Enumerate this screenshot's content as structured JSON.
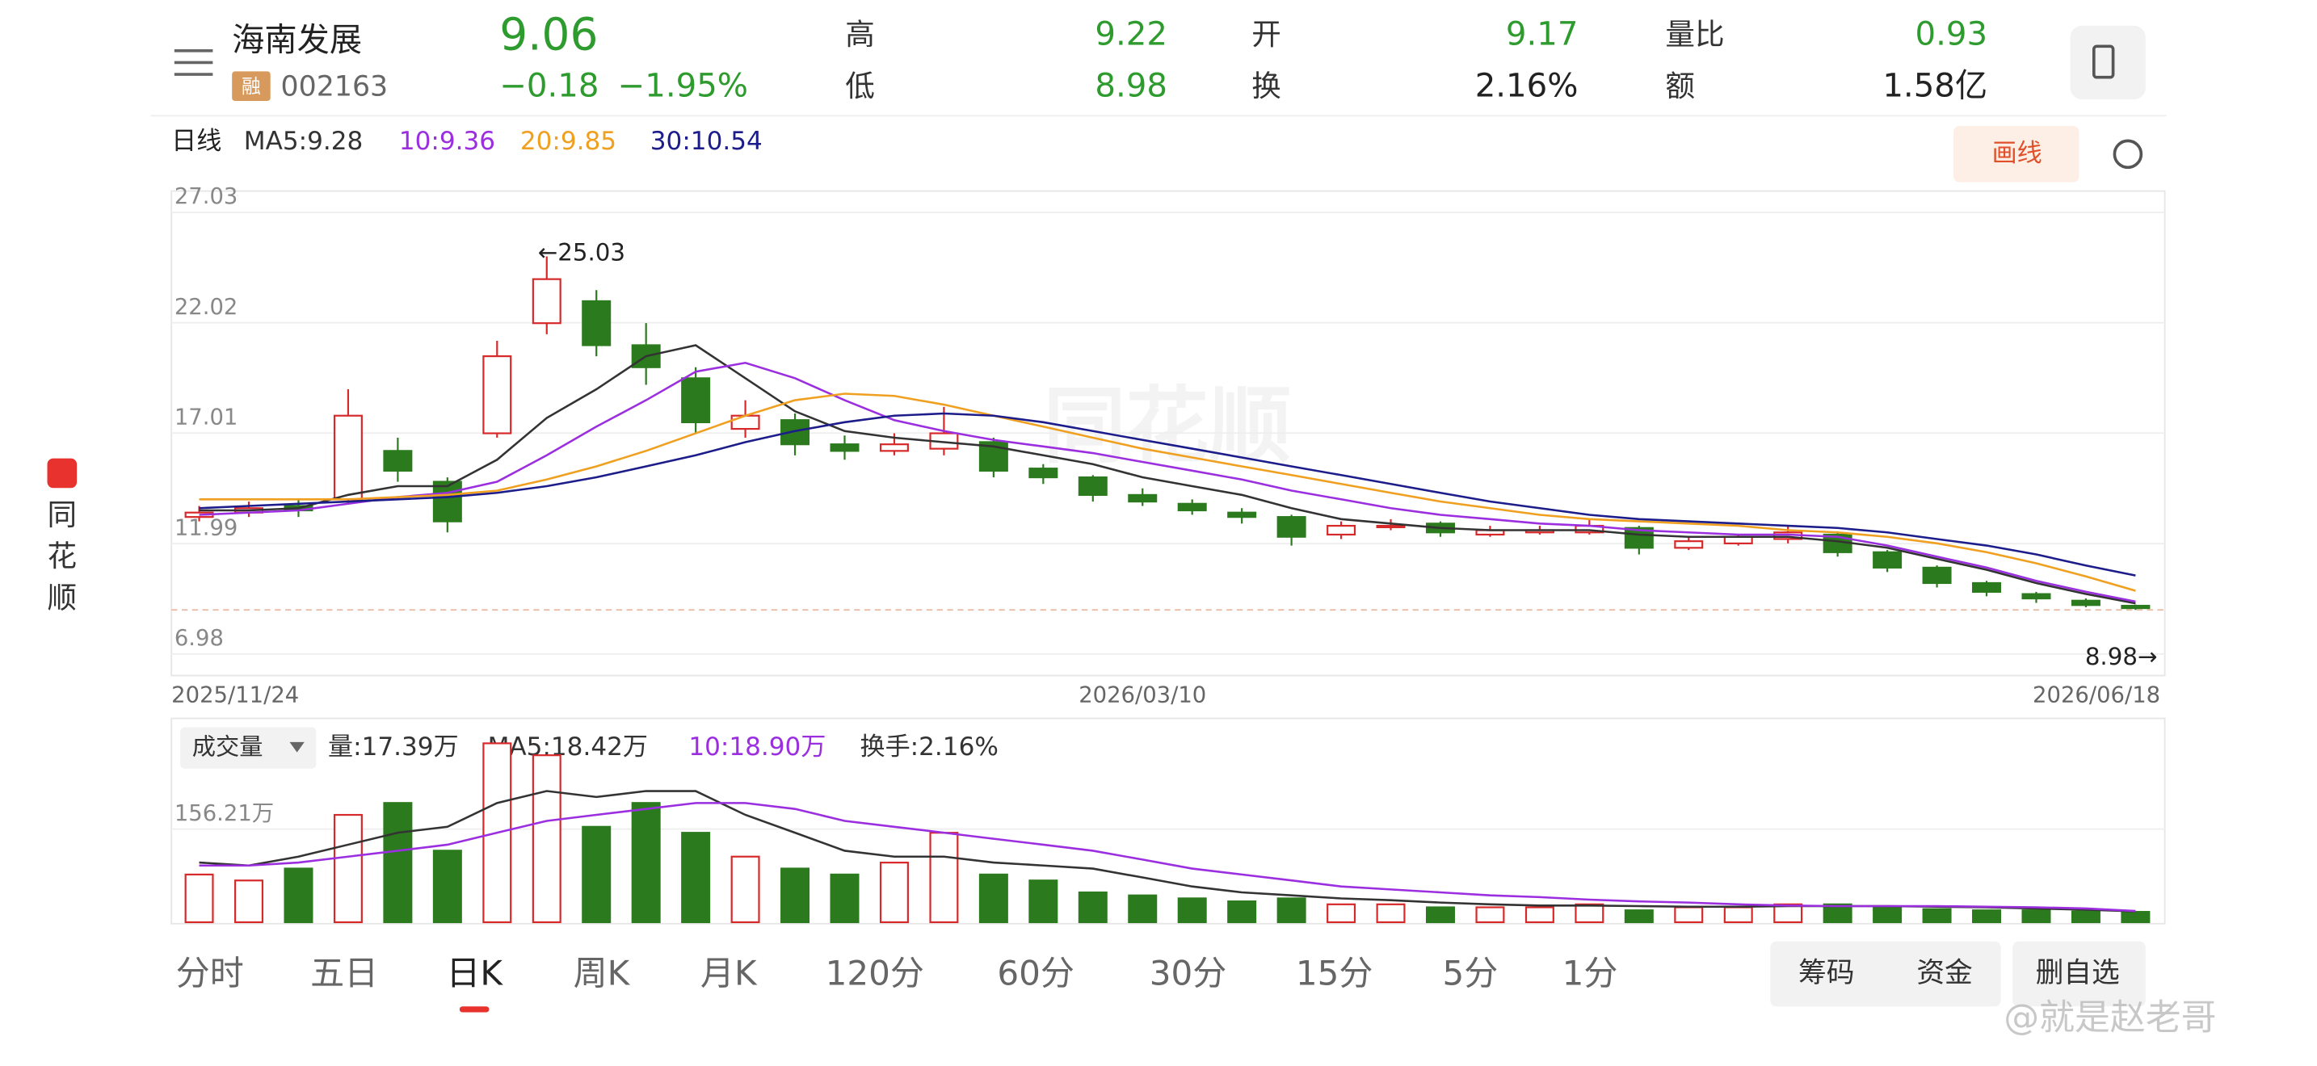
{
  "header": {
    "name": "海南发展",
    "margin_tag": "融",
    "code": "002163",
    "price": "9.06",
    "change": "−0.18",
    "change_pct": "−1.95%",
    "stats": [
      {
        "label": "高",
        "value": "9.22"
      },
      {
        "label": "低",
        "value": "8.98"
      },
      {
        "label": "开",
        "value": "9.17"
      },
      {
        "label": "换",
        "value": "2.16%"
      },
      {
        "label": "量比",
        "value": "0.93"
      },
      {
        "label": "额",
        "value": "1.58亿"
      }
    ]
  },
  "indicator_bar": {
    "period": "日线",
    "legend": [
      "MA5:9.28",
      "10:9.36",
      "20:9.85",
      "30:10.54"
    ],
    "draw_button": "画线"
  },
  "side_logo": "同花顺",
  "watermark": "@就是赵老哥",
  "chart_data": [
    {
      "type": "candlestick",
      "categories": [
        "2025/11/24",
        null,
        null,
        null,
        null,
        null,
        null,
        null,
        null,
        null,
        null,
        null,
        null,
        null,
        null,
        null,
        null,
        null,
        null,
        "2026/03/10",
        null,
        null,
        null,
        null,
        null,
        null,
        null,
        null,
        null,
        null,
        null,
        null,
        null,
        null,
        null,
        null,
        null,
        null,
        null,
        "2026/06/18"
      ],
      "open": [
        13.2,
        13.4,
        13.7,
        14.0,
        16.2,
        14.8,
        17.0,
        22.0,
        23.0,
        21.0,
        19.5,
        17.2,
        17.6,
        16.5,
        16.2,
        16.3,
        16.6,
        15.4,
        15.0,
        14.2,
        13.8,
        13.4,
        13.2,
        12.4,
        12.8,
        12.9,
        12.4,
        12.5,
        12.5,
        12.7,
        11.8,
        12.0,
        12.2,
        12.4,
        11.6,
        10.9,
        10.2,
        9.7,
        9.4,
        9.17
      ],
      "close": [
        13.4,
        13.6,
        13.5,
        17.8,
        15.3,
        13.0,
        20.5,
        24.0,
        21.0,
        20.0,
        17.5,
        17.8,
        16.5,
        16.2,
        16.5,
        17.0,
        15.3,
        15.0,
        14.2,
        13.9,
        13.5,
        13.2,
        12.3,
        12.8,
        12.8,
        12.5,
        12.6,
        12.6,
        12.8,
        11.8,
        12.1,
        12.3,
        12.5,
        11.6,
        10.9,
        10.2,
        9.8,
        9.5,
        9.2,
        9.06
      ],
      "low": [
        13.0,
        13.2,
        13.2,
        13.8,
        14.8,
        12.5,
        16.8,
        21.5,
        20.5,
        19.2,
        17.0,
        16.8,
        16.0,
        15.8,
        16.0,
        16.0,
        15.0,
        14.7,
        13.9,
        13.7,
        13.3,
        12.9,
        11.9,
        12.2,
        12.6,
        12.3,
        12.3,
        12.4,
        12.4,
        11.5,
        11.7,
        11.9,
        12.0,
        11.4,
        10.7,
        10.0,
        9.6,
        9.3,
        9.1,
        8.98
      ],
      "high": [
        13.7,
        13.9,
        14.0,
        19.0,
        16.8,
        15.0,
        21.2,
        25.03,
        23.5,
        22.0,
        20.0,
        18.5,
        17.9,
        16.9,
        17.0,
        18.2,
        16.8,
        15.6,
        15.1,
        14.5,
        14.0,
        13.6,
        13.3,
        13.0,
        13.1,
        13.0,
        12.8,
        12.8,
        13.1,
        12.8,
        12.3,
        12.4,
        12.8,
        12.5,
        11.7,
        11.0,
        10.3,
        9.8,
        9.5,
        9.22
      ],
      "up_color": "#d7282a",
      "down_color": "#2c7a1e",
      "series": [
        {
          "color": "#333333",
          "values": [
            13.5,
            13.5,
            13.6,
            14.2,
            14.6,
            14.6,
            15.8,
            17.7,
            19.0,
            20.5,
            21.0,
            19.5,
            18.0,
            17.1,
            16.8,
            16.6,
            16.4,
            16.0,
            15.6,
            15.0,
            14.6,
            14.2,
            13.6,
            13.1,
            12.9,
            12.7,
            12.6,
            12.6,
            12.6,
            12.4,
            12.3,
            12.3,
            12.3,
            12.1,
            11.8,
            11.3,
            10.8,
            10.2,
            9.7,
            9.28
          ]
        },
        {
          "color": "#9b2fe0",
          "values": [
            13.3,
            13.4,
            13.5,
            13.8,
            14.1,
            14.3,
            14.8,
            16.0,
            17.3,
            18.5,
            19.8,
            20.2,
            19.5,
            18.5,
            17.6,
            17.1,
            16.7,
            16.4,
            16.1,
            15.7,
            15.3,
            14.9,
            14.4,
            14.0,
            13.6,
            13.3,
            13.1,
            12.9,
            12.8,
            12.6,
            12.5,
            12.4,
            12.4,
            12.3,
            11.9,
            11.4,
            10.9,
            10.3,
            9.8,
            9.36
          ]
        },
        {
          "color": "#f0a020",
          "values": [
            14.0,
            14.0,
            14.0,
            14.0,
            14.1,
            14.2,
            14.4,
            14.9,
            15.5,
            16.2,
            17.0,
            17.8,
            18.5,
            18.8,
            18.7,
            18.3,
            17.8,
            17.3,
            16.8,
            16.3,
            15.9,
            15.5,
            15.1,
            14.7,
            14.3,
            13.9,
            13.6,
            13.3,
            13.1,
            13.0,
            12.9,
            12.8,
            12.6,
            12.5,
            12.3,
            12.0,
            11.6,
            11.1,
            10.5,
            9.85
          ]
        },
        {
          "color": "#1c1c8a",
          "values": [
            13.6,
            13.7,
            13.8,
            13.9,
            14.0,
            14.1,
            14.3,
            14.6,
            15.0,
            15.5,
            16.0,
            16.6,
            17.1,
            17.5,
            17.8,
            17.9,
            17.8,
            17.5,
            17.1,
            16.7,
            16.3,
            15.9,
            15.5,
            15.1,
            14.7,
            14.3,
            13.9,
            13.6,
            13.3,
            13.1,
            13.0,
            12.9,
            12.8,
            12.7,
            12.5,
            12.2,
            11.9,
            11.5,
            11.0,
            10.54
          ]
        }
      ],
      "ylim": [
        6,
        28
      ],
      "yticks": [
        27.03,
        22.02,
        17.01,
        11.99,
        6.98
      ],
      "annotations": [
        "←25.03",
        "8.98→"
      ],
      "background_mark": "同花顺"
    },
    {
      "type": "bar",
      "title": "成交量",
      "legend": [
        "量:17.39万",
        "MA5:18.42万",
        "10:18.90万",
        "换手:2.16%"
      ],
      "values": [
        80,
        70,
        90,
        180,
        200,
        120,
        300,
        280,
        160,
        200,
        150,
        110,
        90,
        80,
        100,
        150,
        80,
        70,
        50,
        45,
        40,
        35,
        40,
        30,
        30,
        25,
        25,
        25,
        30,
        20,
        25,
        25,
        30,
        30,
        25,
        22,
        20,
        20,
        18,
        17.39
      ],
      "series": [
        {
          "color": "#333333",
          "values": [
            100,
            95,
            110,
            130,
            150,
            160,
            200,
            220,
            210,
            220,
            220,
            180,
            150,
            120,
            110,
            110,
            100,
            95,
            90,
            75,
            60,
            50,
            45,
            40,
            37,
            33,
            30,
            28,
            28,
            27,
            26,
            26,
            27,
            27,
            27,
            26,
            25,
            23,
            21,
            18.42
          ]
        },
        {
          "color": "#9b2fe0",
          "values": [
            95,
            95,
            100,
            110,
            120,
            130,
            150,
            170,
            180,
            190,
            200,
            200,
            190,
            170,
            160,
            150,
            140,
            130,
            120,
            105,
            90,
            80,
            70,
            60,
            55,
            50,
            45,
            42,
            38,
            35,
            33,
            30,
            28,
            27,
            27,
            27,
            26,
            25,
            23,
            18.9
          ]
        }
      ],
      "ylim": [
        0,
        322
      ],
      "yticks": [
        {
          "value": 156.21,
          "label": "156.21万"
        }
      ]
    }
  ],
  "tabs": [
    "分时",
    "五日",
    "日K",
    "周K",
    "月K",
    "120分",
    "60分",
    "30分",
    "15分",
    "5分",
    "1分"
  ],
  "buttons": [
    "筹码",
    "资金",
    "删自选"
  ]
}
